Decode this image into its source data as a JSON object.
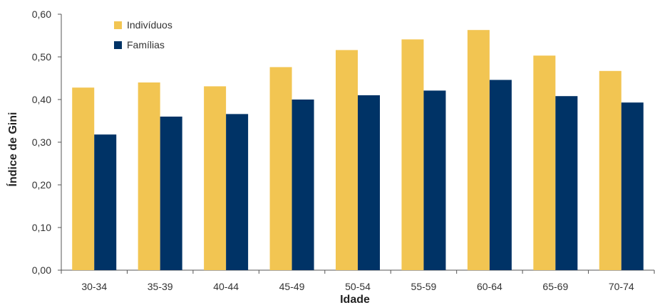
{
  "chart_data": {
    "type": "bar",
    "categories": [
      "30-34",
      "35-39",
      "40-44",
      "45-49",
      "50-54",
      "55-59",
      "60-64",
      "65-69",
      "70-74"
    ],
    "series": [
      {
        "name": "Indivíduos",
        "color": "#F2C552",
        "values": [
          0.428,
          0.44,
          0.431,
          0.476,
          0.516,
          0.541,
          0.563,
          0.503,
          0.467
        ]
      },
      {
        "name": "Famílias",
        "color": "#003366",
        "values": [
          0.318,
          0.36,
          0.366,
          0.4,
          0.41,
          0.421,
          0.446,
          0.408,
          0.393
        ]
      }
    ],
    "xlabel": "Idade",
    "ylabel": "Índice de Gini",
    "ylim": [
      0,
      0.6
    ],
    "yticks": [
      "0,00",
      "0,10",
      "0,20",
      "0,30",
      "0,40",
      "0,50",
      "0,60"
    ],
    "grid": false,
    "legend_position": "top-left"
  }
}
